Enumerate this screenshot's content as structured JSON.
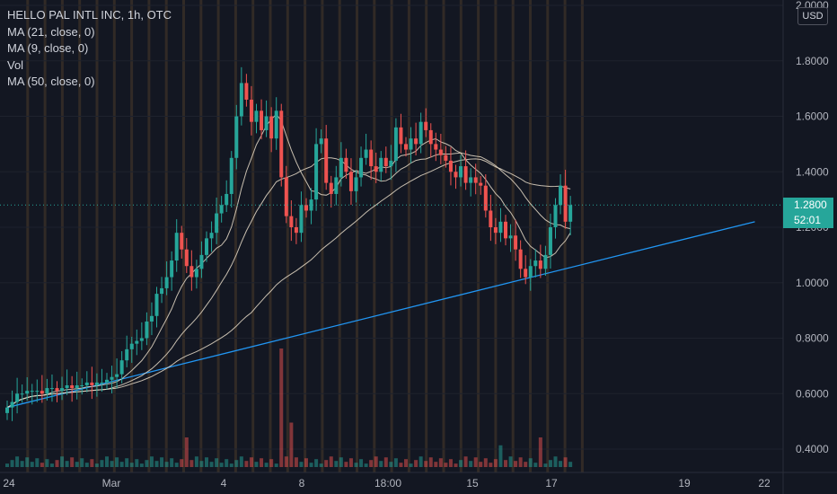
{
  "legend": {
    "symbol": "HELLO PAL INTL INC, 1h, OTC",
    "ma21": "MA (21, close, 0)",
    "ma9": "MA (9, close, 0)",
    "vol": "Vol",
    "ma50": "MA (50, close, 0)"
  },
  "currency_button": "USD",
  "last_price": "1.2800",
  "countdown": "52:01",
  "colors": {
    "background": "#131722",
    "up": "#26a69a",
    "down": "#ef5350",
    "session_band": "#4a3a2a",
    "trendline": "#2196f3",
    "ma_line": "#e8dcc8",
    "price_line": "#26a69a"
  },
  "chart_data": {
    "type": "candlestick",
    "symbol": "HELLO PAL INTL INC",
    "interval": "1h",
    "exchange": "OTC",
    "ylim": [
      0.33,
      2.0
    ],
    "y_ticks": [
      "2.0000",
      "1.8000",
      "1.6000",
      "1.4000",
      "1.2000",
      "1.0000",
      "0.8000",
      "0.6000",
      "0.4000"
    ],
    "x_ticks": [
      "24",
      "Mar",
      "4",
      "8",
      "18:00",
      "15",
      "17",
      "19",
      "22"
    ],
    "close_series": [
      0.55,
      0.57,
      0.6,
      0.6,
      0.61,
      0.61,
      0.61,
      0.6,
      0.62,
      0.62,
      0.61,
      0.62,
      0.63,
      0.62,
      0.63,
      0.63,
      0.64,
      0.63,
      0.64,
      0.64,
      0.65,
      0.66,
      0.67,
      0.72,
      0.76,
      0.78,
      0.79,
      0.8,
      0.86,
      0.88,
      0.96,
      0.98,
      1.02,
      1.08,
      1.18,
      1.12,
      1.06,
      1.02,
      1.05,
      1.1,
      1.16,
      1.18,
      1.25,
      1.28,
      1.32,
      1.45,
      1.6,
      1.72,
      1.66,
      1.58,
      1.62,
      1.55,
      1.6,
      1.52,
      1.62,
      1.38,
      1.24,
      1.2,
      1.18,
      1.28,
      1.26,
      1.3,
      1.5,
      1.52,
      1.36,
      1.32,
      1.38,
      1.45,
      1.4,
      1.33,
      1.38,
      1.45,
      1.48,
      1.42,
      1.4,
      1.45,
      1.42,
      1.44,
      1.56,
      1.5,
      1.48,
      1.52,
      1.5,
      1.58,
      1.55,
      1.5,
      1.48,
      1.46,
      1.44,
      1.4,
      1.38,
      1.42,
      1.36,
      1.38,
      1.36,
      1.35,
      1.26,
      1.2,
      1.18,
      1.22,
      1.16,
      1.17,
      1.12,
      1.05,
      1.02,
      1.06,
      1.08,
      1.05,
      1.1,
      1.2,
      1.28,
      1.35,
      1.22,
      1.28
    ],
    "ma_lines": [
      "MA (21, close, 0)",
      "MA (9, close, 0)",
      "MA (50, close, 0)"
    ],
    "trendline": {
      "start": {
        "bar": 0,
        "price": 0.55
      },
      "end": {
        "bar": 150,
        "price": 1.22
      }
    },
    "volume_spikes": [
      {
        "bar": 36,
        "volume": 3.0
      },
      {
        "bar": 55,
        "volume": 12.0
      },
      {
        "bar": 57,
        "volume": 4.5
      },
      {
        "bar": 99,
        "volume": 2.2
      },
      {
        "bar": 107,
        "volume": 3.0
      }
    ]
  }
}
